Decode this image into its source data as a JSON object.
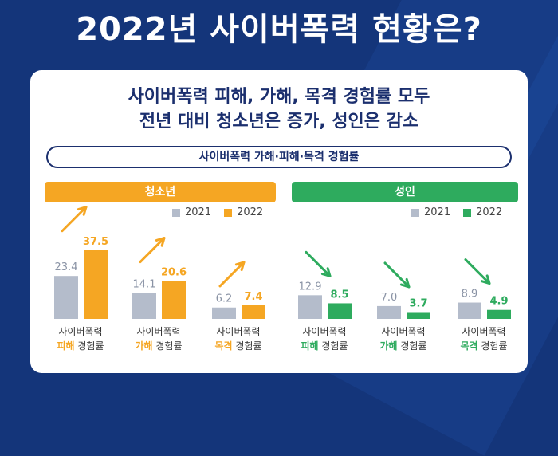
{
  "page_title": "2022년 사이버폭력 현황은?",
  "headline": [
    "사이버폭력 피해, 가해, 목격 경험률 모두",
    "전년 대비 청소년은 증가, 성인은 감소"
  ],
  "subtitle": "사이버폭력 가해·피해·목격 경험률",
  "colors": {
    "youth_accent": "#f5a623",
    "adult_accent": "#2eab5e",
    "bar_2021": "#b4bccb",
    "title_navy": "#1b2f6e"
  },
  "legend_years": [
    "2021",
    "2022"
  ],
  "chart_data": [
    {
      "type": "bar",
      "title": "청소년",
      "categories": [
        {
          "line1": "사이버폭력",
          "keyword": "피해",
          "suffix": "경험률"
        },
        {
          "line1": "사이버폭력",
          "keyword": "가해",
          "suffix": "경험률"
        },
        {
          "line1": "사이버폭력",
          "keyword": "목격",
          "suffix": "경험률"
        }
      ],
      "series": [
        {
          "name": "2021",
          "values": [
            23.4,
            14.1,
            6.2
          ]
        },
        {
          "name": "2022",
          "values": [
            37.5,
            20.6,
            7.4
          ]
        }
      ],
      "trend": "up"
    },
    {
      "type": "bar",
      "title": "성인",
      "categories": [
        {
          "line1": "사이버폭력",
          "keyword": "피해",
          "suffix": "경험률"
        },
        {
          "line1": "사이버폭력",
          "keyword": "가해",
          "suffix": "경험률"
        },
        {
          "line1": "사이버폭력",
          "keyword": "목격",
          "suffix": "경험률"
        }
      ],
      "series": [
        {
          "name": "2021",
          "values": [
            12.9,
            7.0,
            8.9
          ]
        },
        {
          "name": "2022",
          "values": [
            8.5,
            3.7,
            4.9
          ]
        }
      ],
      "trend": "down"
    }
  ]
}
